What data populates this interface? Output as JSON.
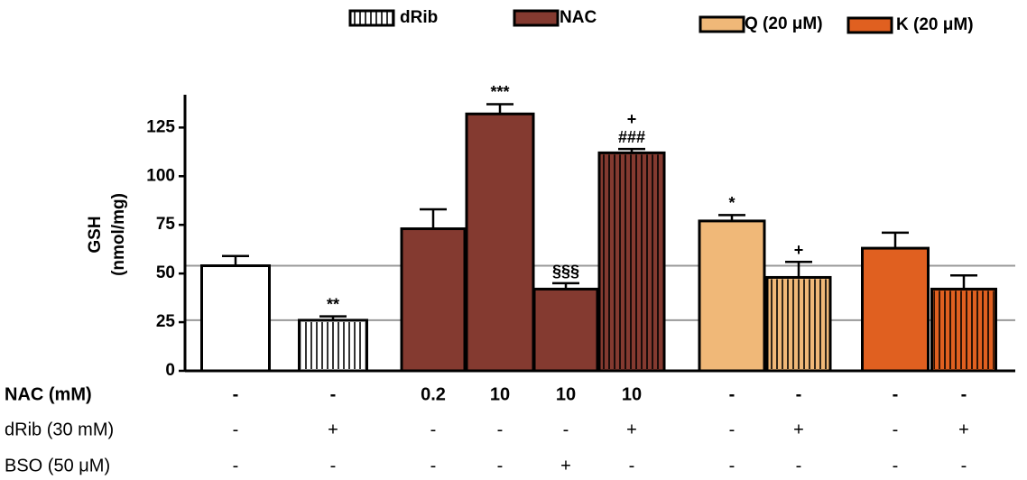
{
  "chart_data": {
    "type": "bar",
    "y_label": [
      "GSH",
      "(nmol/mg)"
    ],
    "legend": [
      {
        "label": "dRib",
        "color": "#ffffff",
        "hatched": true
      },
      {
        "label": "NAC",
        "color": "#843a30",
        "hatched": false
      },
      {
        "label": "Q (20 μM)",
        "color": "#f0b878",
        "hatched": false
      },
      {
        "label": "K (20 μM)",
        "color": "#e06020",
        "hatched": false
      }
    ],
    "values": [
      54,
      26,
      73,
      132,
      42,
      112,
      77,
      48,
      63,
      42
    ],
    "errors": [
      5,
      2,
      10,
      5,
      3,
      2,
      3,
      8,
      8,
      7
    ],
    "colors": [
      "#ffffff",
      "#ffffff",
      "#843a30",
      "#843a30",
      "#843a30",
      "#843a30",
      "#f0b878",
      "#f0b878",
      "#e06020",
      "#e06020"
    ],
    "hatched": [
      false,
      true,
      false,
      false,
      false,
      true,
      false,
      true,
      false,
      true
    ],
    "annotations": [
      [],
      [
        "**"
      ],
      [],
      [
        "***"
      ],
      [
        "§§§"
      ],
      [
        "+",
        "###"
      ],
      [
        "*"
      ],
      [
        "+"
      ],
      [],
      []
    ],
    "reference_lines": [
      54,
      26
    ],
    "ylim": [
      0,
      140
    ],
    "yticks": [
      0,
      25,
      50,
      75,
      100,
      125
    ],
    "conditions": [
      {
        "label": "NAC (mM)",
        "values": [
          "-",
          "-",
          "0.2",
          "10",
          "10",
          "10",
          "-",
          "-",
          "-",
          "-"
        ]
      },
      {
        "label": "dRib (30 mM)",
        "values": [
          "-",
          "+",
          "-",
          "-",
          "-",
          "+",
          "-",
          "+",
          "-",
          "+"
        ]
      },
      {
        "label": "BSO (50 μM)",
        "values": [
          "-",
          "-",
          "-",
          "-",
          "+",
          "-",
          "-",
          "-",
          "-",
          "-"
        ]
      }
    ]
  }
}
